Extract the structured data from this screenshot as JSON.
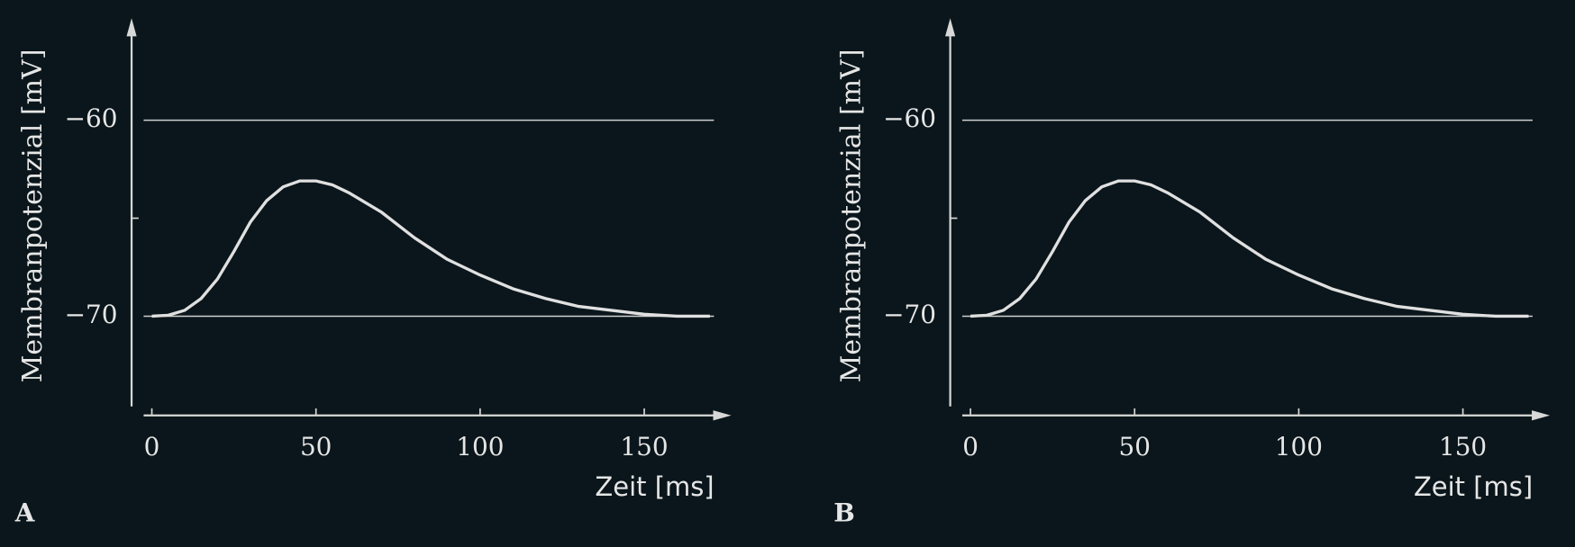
{
  "chart_data": [
    {
      "type": "line",
      "panel_label": "A",
      "x_label": "Zeit [ms]",
      "y_label": "Membranpotenzial [mV]",
      "xlim": [
        -2.5,
        176.5
      ],
      "ylim": [
        -74.6,
        -54.8
      ],
      "xticks": [
        0,
        50,
        100,
        150
      ],
      "yticks": [
        {
          "value": -60,
          "label": "−60"
        },
        {
          "value": -70,
          "label": "−70"
        }
      ],
      "grid": true,
      "color": "#e0e0e0",
      "x": [
        0,
        5,
        10,
        15,
        20,
        25,
        30,
        35,
        40,
        45,
        50,
        55,
        60,
        70,
        80,
        90,
        100,
        110,
        120,
        130,
        140,
        150,
        160,
        170
      ],
      "values": [
        -70,
        -69.95,
        -69.7,
        -69.1,
        -68.1,
        -66.7,
        -65.2,
        -64.1,
        -63.4,
        -63.1,
        -63.1,
        -63.3,
        -63.7,
        -64.7,
        -66.0,
        -67.1,
        -67.9,
        -68.6,
        -69.1,
        -69.5,
        -69.7,
        -69.9,
        -70,
        -70
      ]
    },
    {
      "type": "line",
      "panel_label": "B",
      "x_label": "Zeit [ms]",
      "y_label": "Membranpotenzial [mV]",
      "xlim": [
        -2.5,
        176.5
      ],
      "ylim": [
        -74.6,
        -54.8
      ],
      "xticks": [
        0,
        50,
        100,
        150
      ],
      "yticks": [
        {
          "value": -60,
          "label": "−60"
        },
        {
          "value": -70,
          "label": "−70"
        }
      ],
      "grid": true,
      "color": "#e0e0e0",
      "x": [
        0,
        5,
        10,
        15,
        20,
        25,
        30,
        35,
        40,
        45,
        50,
        55,
        60,
        70,
        80,
        90,
        100,
        110,
        120,
        130,
        140,
        150,
        160,
        170
      ],
      "values": [
        -70,
        -69.95,
        -69.7,
        -69.1,
        -68.1,
        -66.7,
        -65.2,
        -64.1,
        -63.4,
        -63.1,
        -63.1,
        -63.3,
        -63.7,
        -64.7,
        -66.0,
        -67.1,
        -67.9,
        -68.6,
        -69.1,
        -69.5,
        -69.7,
        -69.9,
        -70,
        -70
      ]
    }
  ]
}
